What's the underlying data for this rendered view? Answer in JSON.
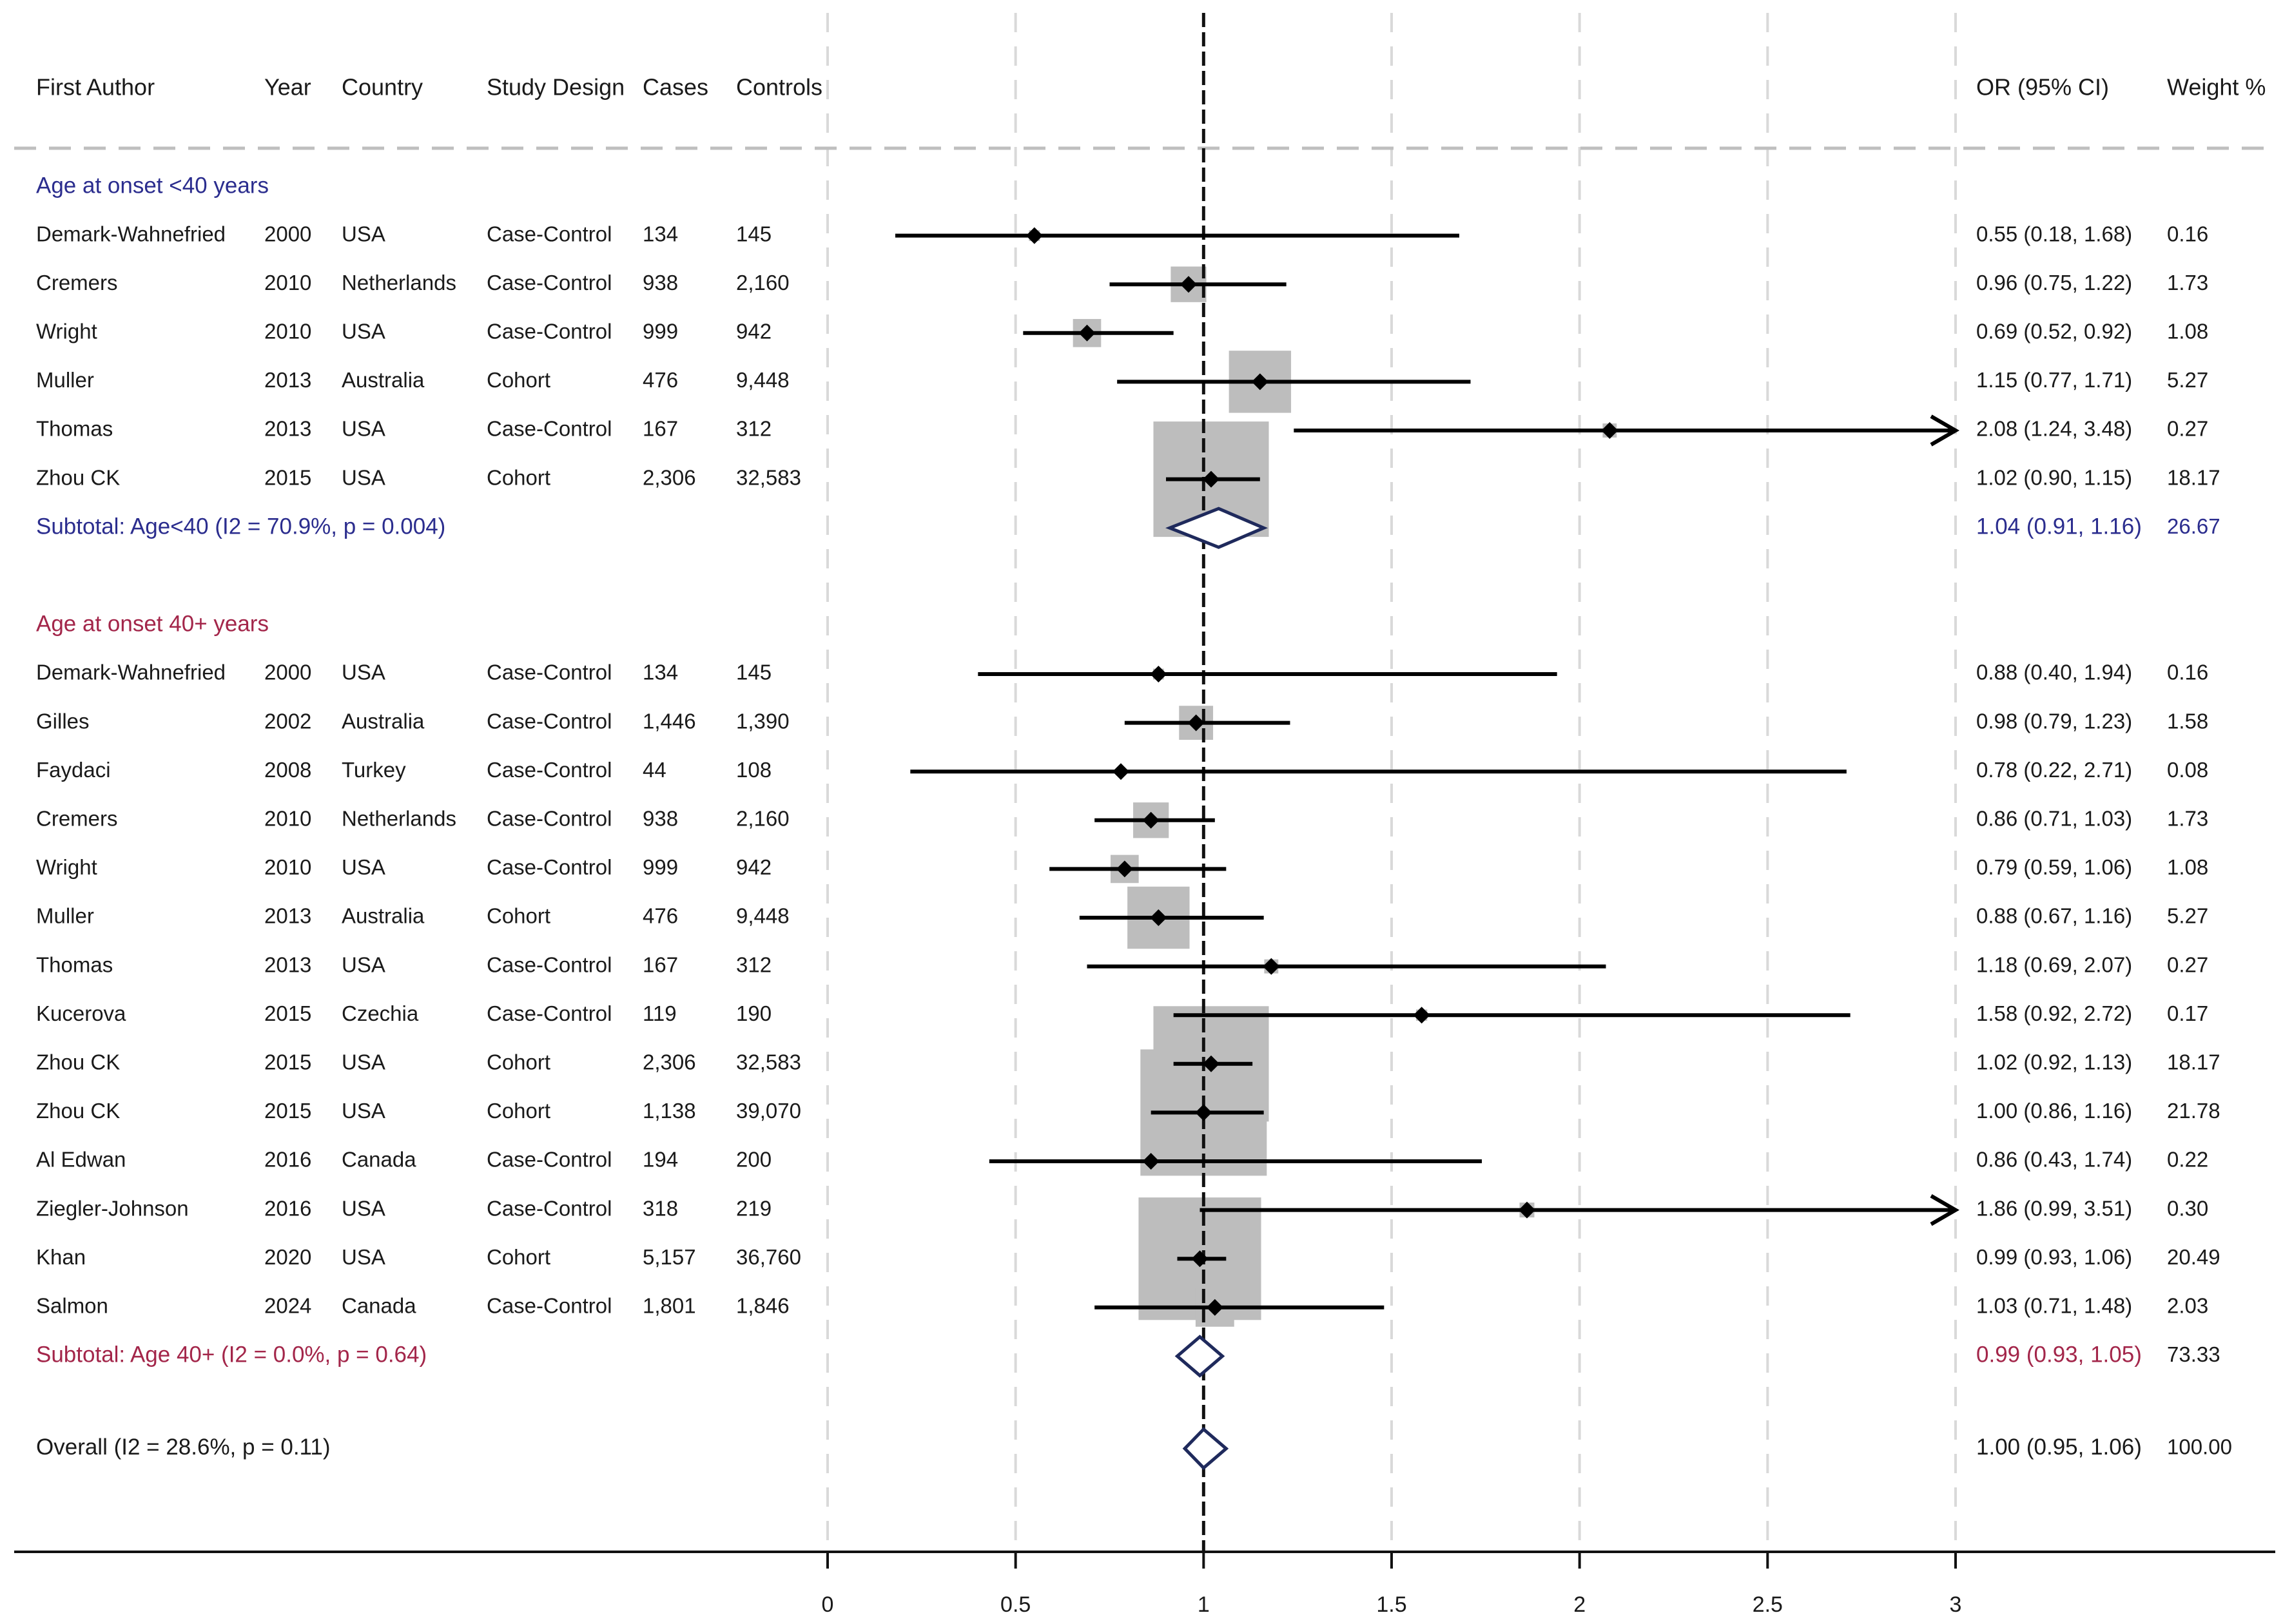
{
  "colors": {
    "group1": "#2b2d8e",
    "group2": "#a3264a",
    "text": "#1a1a1a",
    "box": "#bdbdbd",
    "diamond": "#1f2a5c",
    "grid": "#d9d9d9"
  },
  "chart_data": {
    "type": "forest",
    "title": "",
    "xlabel": "",
    "ylabel": "",
    "xlim": [
      0,
      3
    ],
    "x_ticks": [
      "0",
      "0.5",
      "1",
      "1.5",
      "2",
      "2.5",
      "3"
    ],
    "x_tick_values": [
      0,
      0.5,
      1,
      1.5,
      2,
      2.5,
      3
    ],
    "reference_line": 1,
    "null_line": 1,
    "headers": {
      "author": "First Author",
      "year": "Year",
      "country": "Country",
      "design": "Study Design",
      "cases": "Cases",
      "controls": "Controls",
      "or": "OR (95% CI)",
      "weight": "Weight %"
    },
    "groups": [
      {
        "label": "Age at onset <40 years",
        "color_key": "group1",
        "studies": [
          {
            "author": "Demark-Wahnefried",
            "year": "2000",
            "country": "USA",
            "design": "Case-Control",
            "cases": "134",
            "controls": "145",
            "or": 0.55,
            "lo": 0.18,
            "hi": 1.68,
            "or_text": "0.55 (0.18, 1.68)",
            "weight": 0.16,
            "weight_text": "0.16"
          },
          {
            "author": "Cremers",
            "year": "2010",
            "country": "Netherlands",
            "design": "Case-Control",
            "cases": "938",
            "controls": "2,160",
            "or": 0.96,
            "lo": 0.75,
            "hi": 1.22,
            "or_text": "0.96 (0.75, 1.22)",
            "weight": 1.73,
            "weight_text": "1.73"
          },
          {
            "author": "Wright",
            "year": "2010",
            "country": "USA",
            "design": "Case-Control",
            "cases": "999",
            "controls": "942",
            "or": 0.69,
            "lo": 0.52,
            "hi": 0.92,
            "or_text": "0.69 (0.52, 0.92)",
            "weight": 1.08,
            "weight_text": "1.08"
          },
          {
            "author": "Muller",
            "year": "2013",
            "country": "Australia",
            "design": "Cohort",
            "cases": "476",
            "controls": "9,448",
            "or": 1.15,
            "lo": 0.77,
            "hi": 1.71,
            "or_text": "1.15 (0.77, 1.71)",
            "weight": 5.27,
            "weight_text": "5.27"
          },
          {
            "author": "Thomas",
            "year": "2013",
            "country": "USA",
            "design": "Case-Control",
            "cases": "167",
            "controls": "312",
            "or": 2.08,
            "lo": 1.24,
            "hi": 3.48,
            "or_text": "2.08 (1.24, 3.48)",
            "weight": 0.27,
            "weight_text": "0.27"
          },
          {
            "author": "Zhou CK",
            "year": "2015",
            "country": "USA",
            "design": "Cohort",
            "cases": "2,306",
            "controls": "32,583",
            "or": 1.02,
            "lo": 0.9,
            "hi": 1.15,
            "or_text": "1.02 (0.90, 1.15)",
            "weight": 18.17,
            "weight_text": "18.17"
          }
        ],
        "subtotal": {
          "label": "Subtotal: Age<40 (I2 = 70.9%, p = 0.004)",
          "or": 1.04,
          "lo": 0.91,
          "hi": 1.16,
          "or_text": "1.04 (0.91, 1.16)",
          "weight_text": "26.67"
        }
      },
      {
        "label": "Age at onset 40+ years",
        "color_key": "group2",
        "studies": [
          {
            "author": "Demark-Wahnefried",
            "year": "2000",
            "country": "USA",
            "design": "Case-Control",
            "cases": "134",
            "controls": "145",
            "or": 0.88,
            "lo": 0.4,
            "hi": 1.94,
            "or_text": "0.88 (0.40, 1.94)",
            "weight": 0.16,
            "weight_text": "0.16"
          },
          {
            "author": "Gilles",
            "year": "2002",
            "country": "Australia",
            "design": "Case-Control",
            "cases": "1,446",
            "controls": "1,390",
            "or": 0.98,
            "lo": 0.79,
            "hi": 1.23,
            "or_text": "0.98 (0.79, 1.23)",
            "weight": 1.58,
            "weight_text": "1.58"
          },
          {
            "author": "Faydaci",
            "year": "2008",
            "country": "Turkey",
            "design": "Case-Control",
            "cases": "44",
            "controls": "108",
            "or": 0.78,
            "lo": 0.22,
            "hi": 2.71,
            "or_text": "0.78 (0.22, 2.71)",
            "weight": 0.08,
            "weight_text": "0.08"
          },
          {
            "author": "Cremers",
            "year": "2010",
            "country": "Netherlands",
            "design": "Case-Control",
            "cases": "938",
            "controls": "2,160",
            "or": 0.86,
            "lo": 0.71,
            "hi": 1.03,
            "or_text": "0.86 (0.71, 1.03)",
            "weight": 1.73,
            "weight_text": "1.73"
          },
          {
            "author": "Wright",
            "year": "2010",
            "country": "USA",
            "design": "Case-Control",
            "cases": "999",
            "controls": "942",
            "or": 0.79,
            "lo": 0.59,
            "hi": 1.06,
            "or_text": "0.79 (0.59, 1.06)",
            "weight": 1.08,
            "weight_text": "1.08"
          },
          {
            "author": "Muller",
            "year": "2013",
            "country": "Australia",
            "design": "Cohort",
            "cases": "476",
            "controls": "9,448",
            "or": 0.88,
            "lo": 0.67,
            "hi": 1.16,
            "or_text": "0.88 (0.67, 1.16)",
            "weight": 5.27,
            "weight_text": "5.27"
          },
          {
            "author": "Thomas",
            "year": "2013",
            "country": "USA",
            "design": "Case-Control",
            "cases": "167",
            "controls": "312",
            "or": 1.18,
            "lo": 0.69,
            "hi": 2.07,
            "or_text": "1.18 (0.69, 2.07)",
            "weight": 0.27,
            "weight_text": "0.27"
          },
          {
            "author": "Kucerova",
            "year": "2015",
            "country": "Czechia",
            "design": "Case-Control",
            "cases": "119",
            "controls": "190",
            "or": 1.58,
            "lo": 0.92,
            "hi": 2.72,
            "or_text": "1.58 (0.92, 2.72)",
            "weight": 0.17,
            "weight_text": "0.17"
          },
          {
            "author": "Zhou CK",
            "year": "2015",
            "country": "USA",
            "design": "Cohort",
            "cases": "2,306",
            "controls": "32,583",
            "or": 1.02,
            "lo": 0.92,
            "hi": 1.13,
            "or_text": "1.02 (0.92, 1.13)",
            "weight": 18.17,
            "weight_text": "18.17"
          },
          {
            "author": "Zhou CK",
            "year": "2015",
            "country": "USA",
            "design": "Cohort",
            "cases": "1,138",
            "controls": "39,070",
            "or": 1.0,
            "lo": 0.86,
            "hi": 1.16,
            "or_text": "1.00 (0.86, 1.16)",
            "weight": 21.78,
            "weight_text": "21.78"
          },
          {
            "author": "Al Edwan",
            "year": "2016",
            "country": "Canada",
            "design": "Case-Control",
            "cases": "194",
            "controls": "200",
            "or": 0.86,
            "lo": 0.43,
            "hi": 1.74,
            "or_text": "0.86 (0.43, 1.74)",
            "weight": 0.22,
            "weight_text": "0.22"
          },
          {
            "author": "Ziegler-Johnson",
            "year": "2016",
            "country": "USA",
            "design": "Case-Control",
            "cases": "318",
            "controls": "219",
            "or": 1.86,
            "lo": 0.99,
            "hi": 3.51,
            "or_text": "1.86 (0.99, 3.51)",
            "weight": 0.3,
            "weight_text": "0.30"
          },
          {
            "author": "Khan",
            "year": "2020",
            "country": "USA",
            "design": "Cohort",
            "cases": "5,157",
            "controls": "36,760",
            "or": 0.99,
            "lo": 0.93,
            "hi": 1.06,
            "or_text": "0.99 (0.93, 1.06)",
            "weight": 20.49,
            "weight_text": "20.49"
          },
          {
            "author": "Salmon",
            "year": "2024",
            "country": "Canada",
            "design": "Case-Control",
            "cases": "1,801",
            "controls": "1,846",
            "or": 1.03,
            "lo": 0.71,
            "hi": 1.48,
            "or_text": "1.03 (0.71, 1.48)",
            "weight": 2.03,
            "weight_text": "2.03"
          }
        ],
        "subtotal": {
          "label": "Subtotal: Age 40+ (I2 = 0.0%, p = 0.64)",
          "or": 0.99,
          "lo": 0.93,
          "hi": 1.05,
          "or_text": "0.99 (0.93, 1.05)",
          "weight_text": "73.33"
        }
      }
    ],
    "overall": {
      "label": "Overall  (I2  = 28.6%, p = 0.11)",
      "or": 1.0,
      "lo": 0.95,
      "hi": 1.06,
      "or_text": "1.00 (0.95, 1.06)",
      "weight_text": "100.00"
    }
  }
}
